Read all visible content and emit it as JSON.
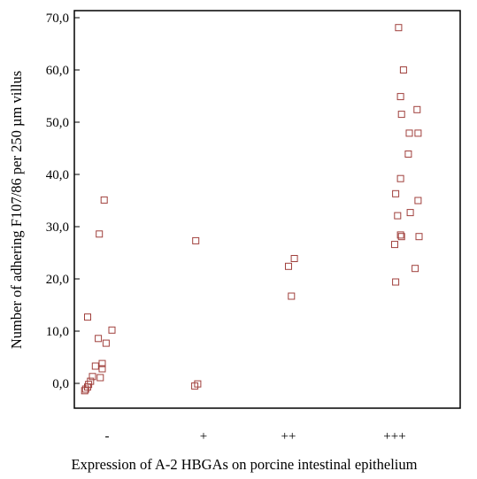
{
  "chart_data": {
    "type": "scatter",
    "title": "",
    "xlabel": "Expression of A-2 HBGAs on porcine intestinal epithelium",
    "ylabel": "Number of adhering F107/86 per 250 µm villus",
    "categories": [
      "-",
      "+",
      "++",
      "+++"
    ],
    "ylim": [
      -5,
      71
    ],
    "yticks": [
      0,
      10,
      20,
      30,
      40,
      50,
      60,
      70
    ],
    "ytick_labels": [
      "0,0",
      "10,0",
      "20,0",
      "30,0",
      "40,0",
      "50,0",
      "60,0",
      "70,0"
    ],
    "marker": "open-square",
    "marker_color": "#a0403c",
    "grid": false,
    "legend": "none",
    "points": [
      {
        "category": "-",
        "jitter": -0.03,
        "y": 35.1
      },
      {
        "category": "-",
        "jitter": -0.08,
        "y": 28.6
      },
      {
        "category": "-",
        "jitter": -0.2,
        "y": 12.7
      },
      {
        "category": "-",
        "jitter": 0.05,
        "y": 10.2
      },
      {
        "category": "-",
        "jitter": -0.09,
        "y": 8.6
      },
      {
        "category": "-",
        "jitter": -0.01,
        "y": 7.7
      },
      {
        "category": "-",
        "jitter": -0.05,
        "y": 3.8
      },
      {
        "category": "-",
        "jitter": -0.12,
        "y": 3.3
      },
      {
        "category": "-",
        "jitter": -0.05,
        "y": 2.8
      },
      {
        "category": "-",
        "jitter": -0.15,
        "y": 1.3
      },
      {
        "category": "-",
        "jitter": -0.07,
        "y": 1.1
      },
      {
        "category": "-",
        "jitter": -0.17,
        "y": 0.4
      },
      {
        "category": "-",
        "jitter": -0.19,
        "y": -0.2
      },
      {
        "category": "-",
        "jitter": -0.2,
        "y": -0.7
      },
      {
        "category": "-",
        "jitter": -0.22,
        "y": -1.1
      },
      {
        "category": "-",
        "jitter": -0.23,
        "y": -1.4
      },
      {
        "category": "+",
        "jitter": -0.08,
        "y": 27.3
      },
      {
        "category": "+",
        "jitter": -0.06,
        "y": -0.1
      },
      {
        "category": "+",
        "jitter": -0.09,
        "y": -0.5
      },
      {
        "category": "++",
        "jitter": 0.06,
        "y": 23.9
      },
      {
        "category": "++",
        "jitter": 0.0,
        "y": 22.4
      },
      {
        "category": "++",
        "jitter": 0.03,
        "y": 16.7
      },
      {
        "category": "+++",
        "jitter": 0.04,
        "y": 68.1
      },
      {
        "category": "+++",
        "jitter": 0.09,
        "y": 60.0
      },
      {
        "category": "+++",
        "jitter": 0.06,
        "y": 54.9
      },
      {
        "category": "+++",
        "jitter": 0.23,
        "y": 52.4
      },
      {
        "category": "+++",
        "jitter": 0.07,
        "y": 51.5
      },
      {
        "category": "+++",
        "jitter": 0.15,
        "y": 47.9
      },
      {
        "category": "+++",
        "jitter": 0.24,
        "y": 47.9
      },
      {
        "category": "+++",
        "jitter": 0.14,
        "y": 43.9
      },
      {
        "category": "+++",
        "jitter": 0.06,
        "y": 39.2
      },
      {
        "category": "+++",
        "jitter": 0.01,
        "y": 36.3
      },
      {
        "category": "+++",
        "jitter": 0.24,
        "y": 35.0
      },
      {
        "category": "+++",
        "jitter": 0.16,
        "y": 32.7
      },
      {
        "category": "+++",
        "jitter": 0.03,
        "y": 32.1
      },
      {
        "category": "+++",
        "jitter": 0.06,
        "y": 28.4
      },
      {
        "category": "+++",
        "jitter": 0.07,
        "y": 28.1
      },
      {
        "category": "+++",
        "jitter": 0.25,
        "y": 28.1
      },
      {
        "category": "+++",
        "jitter": 0.0,
        "y": 26.6
      },
      {
        "category": "+++",
        "jitter": 0.21,
        "y": 22.0
      },
      {
        "category": "+++",
        "jitter": 0.01,
        "y": 19.4
      }
    ]
  }
}
